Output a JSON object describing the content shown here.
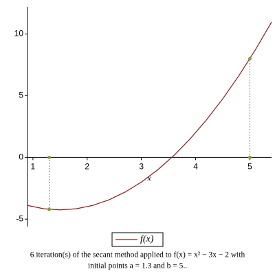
{
  "chart_data": {
    "type": "line",
    "x_label": "x",
    "x": [
      0.9,
      1.2,
      1.5,
      1.8,
      2.1,
      2.4,
      2.7,
      3.0,
      3.3,
      3.6,
      3.9,
      4.2,
      4.5,
      4.8,
      5.1,
      5.4
    ],
    "series": [
      {
        "name": "f(x)",
        "color": "#8b1a1a",
        "values": [
          -3.89,
          -4.16,
          -4.25,
          -4.16,
          -3.89,
          -3.44,
          -2.81,
          -2,
          -1.01,
          0.16,
          1.51,
          3.04,
          4.75,
          6.64,
          8.71,
          10.96
        ]
      }
    ],
    "points": {
      "x": [
        1.3,
        1.3,
        5,
        5
      ],
      "y": [
        0,
        -4.21,
        0,
        8
      ],
      "color": "#7fa23a"
    },
    "xlim": [
      0.9,
      5.4
    ],
    "ylim": [
      -5.6,
      12.2
    ],
    "xticks": [
      1,
      2,
      3,
      4,
      5
    ],
    "yticks": [
      -5,
      0,
      5,
      10
    ],
    "caption": [
      "6 iteration(s) of the secant method applied to f(x) = x² − 3x − 2 with",
      "initial points a = 1.3 and b = 5.."
    ]
  }
}
